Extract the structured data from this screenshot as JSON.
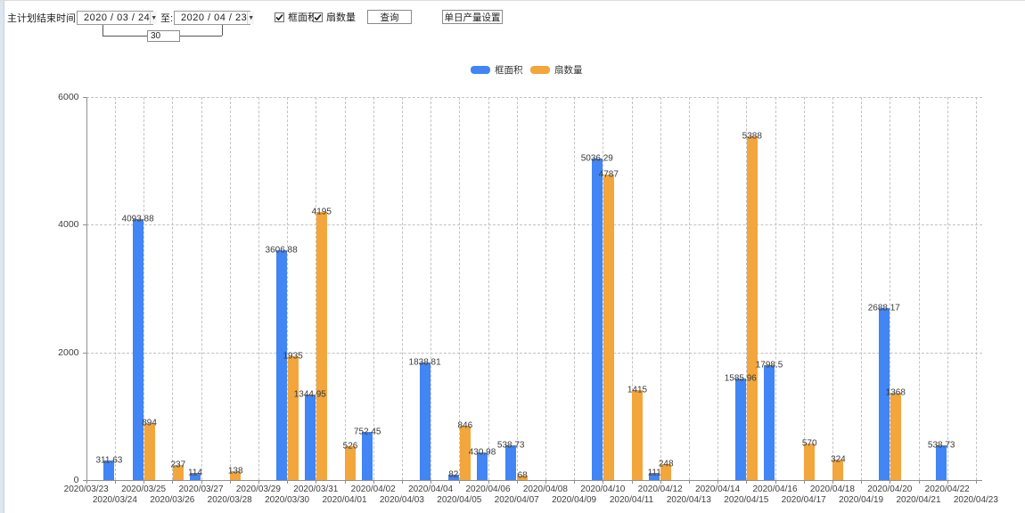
{
  "toolbar": {
    "label_start": "主计划结束时间:",
    "date_from": "2020 / 03 / 24",
    "label_to": "至:",
    "date_to": "2020 / 04 / 23",
    "interval_value": "30",
    "checkbox_area_label": "框面积",
    "checkbox_fan_label": "扇数量",
    "checkbox_area_checked": true,
    "checkbox_fan_checked": true,
    "query_button": "查询",
    "daily_output_button": "单日产量设置"
  },
  "legend": {
    "items": [
      {
        "label": "框面积",
        "color": "#4285F4"
      },
      {
        "label": "扇数量",
        "color": "#F2A63C"
      }
    ]
  },
  "chart_data": {
    "type": "bar",
    "title": "",
    "xlabel": "",
    "ylabel": "",
    "ylim": [
      0,
      6000
    ],
    "yticks": [
      0,
      2000,
      4000,
      6000
    ],
    "grid": "dashed",
    "legend_position": "top-center",
    "categories": [
      "2020/03/23",
      "2020/03/24",
      "2020/03/25",
      "2020/03/26",
      "2020/03/27",
      "2020/03/28",
      "2020/03/29",
      "2020/03/30",
      "2020/03/31",
      "2020/04/01",
      "2020/04/02",
      "2020/04/03",
      "2020/04/04",
      "2020/04/05",
      "2020/04/06",
      "2020/04/07",
      "2020/04/08",
      "2020/04/09",
      "2020/04/10",
      "2020/04/11",
      "2020/04/12",
      "2020/04/13",
      "2020/04/14",
      "2020/04/15",
      "2020/04/16",
      "2020/04/17",
      "2020/04/18",
      "2020/04/19",
      "2020/04/20",
      "2020/04/21",
      "2020/04/22",
      "2020/04/23"
    ],
    "series": [
      {
        "name": "框面积",
        "color": "#4285F4",
        "values": [
          null,
          311.63,
          4093.88,
          null,
          114,
          null,
          null,
          3606.88,
          1344.95,
          null,
          752.45,
          null,
          1838.81,
          82,
          430.98,
          538.73,
          null,
          null,
          5036.29,
          null,
          111,
          null,
          null,
          1585.96,
          1798.5,
          null,
          null,
          null,
          2688.17,
          null,
          538.73,
          null
        ]
      },
      {
        "name": "扇数量",
        "color": "#F2A63C",
        "values": [
          null,
          null,
          894,
          237,
          null,
          138,
          null,
          1935,
          4195,
          526,
          null,
          null,
          null,
          846,
          null,
          68,
          null,
          null,
          4787,
          1415,
          248,
          null,
          null,
          5388,
          null,
          570,
          324,
          null,
          1368,
          null,
          null,
          null
        ]
      }
    ]
  }
}
